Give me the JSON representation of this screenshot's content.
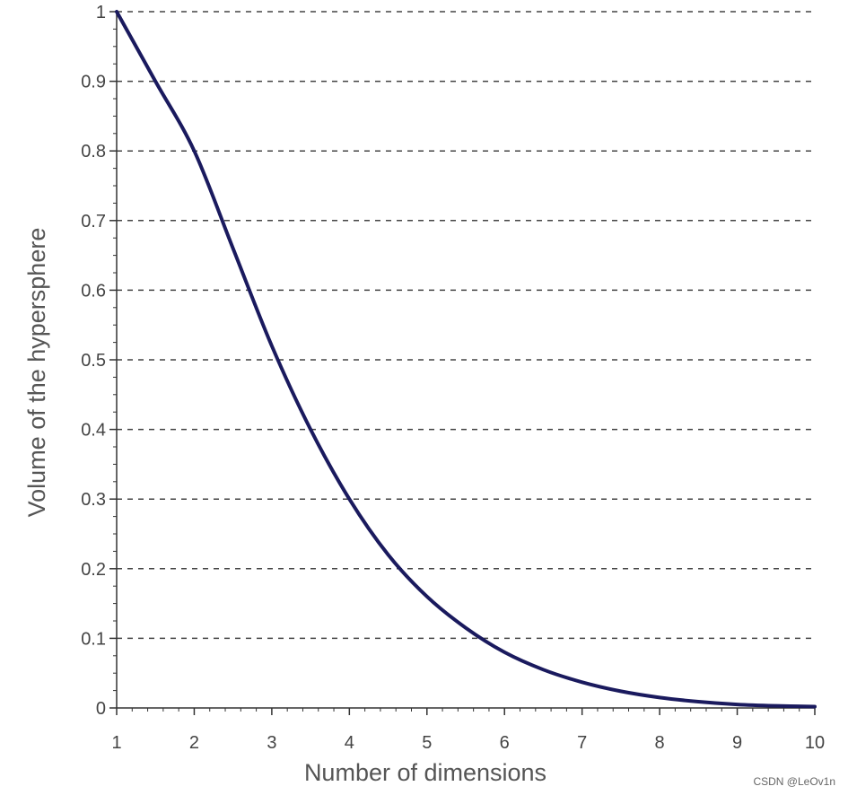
{
  "chart_data": {
    "type": "line",
    "title": "",
    "xlabel": "Number of dimensions",
    "ylabel": "Volume of the hypersphere",
    "xlim": [
      1,
      10
    ],
    "ylim": [
      0,
      1
    ],
    "x_ticks": [
      "1",
      "2",
      "3",
      "4",
      "5",
      "6",
      "7",
      "8",
      "9",
      "10"
    ],
    "y_ticks": [
      "0",
      "0.1",
      "0.2",
      "0.3",
      "0.4",
      "0.5",
      "0.6",
      "0.7",
      "0.8",
      "0.9",
      "1"
    ],
    "grid": "horizontal-dashed",
    "legend": "none",
    "series": [
      {
        "color": "#1a1a5e",
        "x": [
          1,
          1.5,
          2,
          2.5,
          3,
          3.5,
          4,
          4.5,
          5,
          5.5,
          6,
          6.5,
          7,
          7.5,
          8,
          8.5,
          9,
          9.5,
          10
        ],
        "y": [
          1,
          0.9,
          0.8,
          0.66,
          0.52,
          0.4,
          0.3,
          0.22,
          0.16,
          0.115,
          0.08,
          0.055,
          0.037,
          0.024,
          0.015,
          0.009,
          0.005,
          0.003,
          0.002
        ]
      }
    ]
  },
  "watermark": "CSDN @LeOv1n"
}
